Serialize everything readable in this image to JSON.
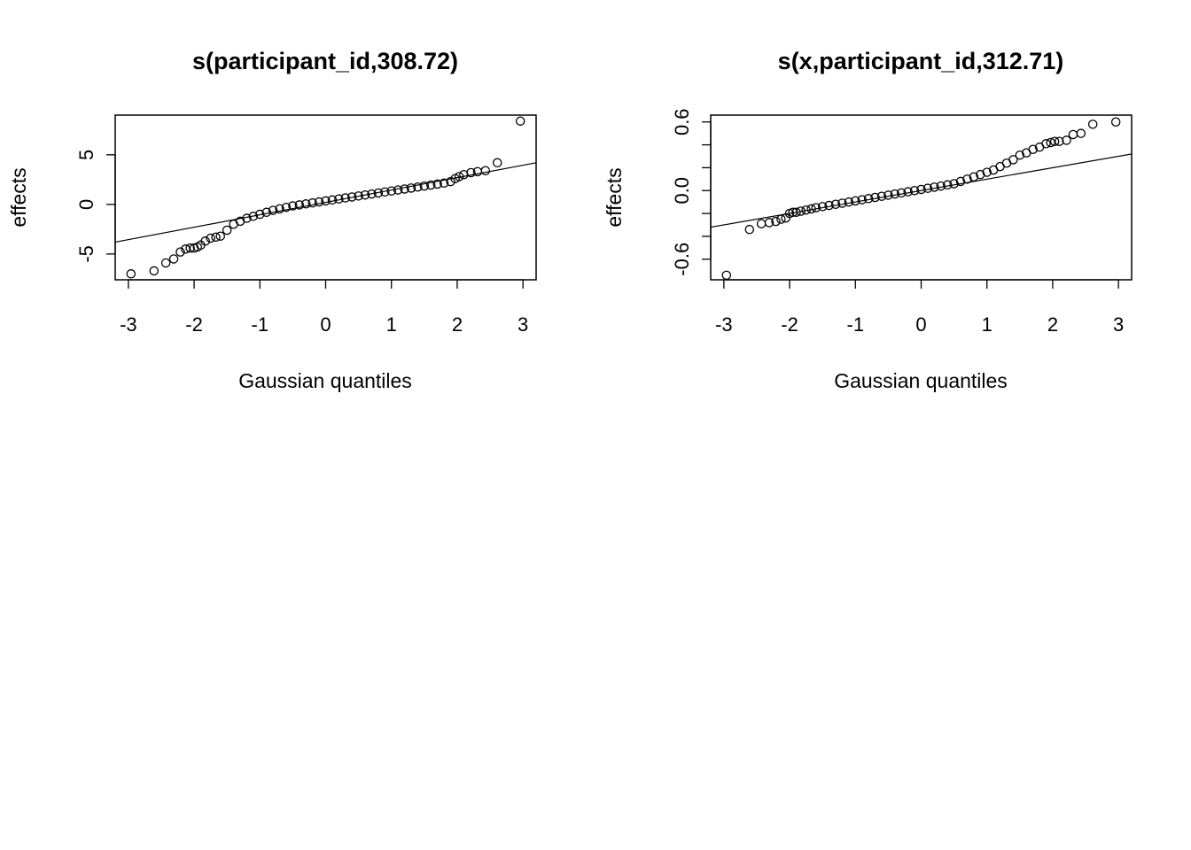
{
  "chart_data": [
    {
      "type": "scatter",
      "title": "s(participant_id,308.72)",
      "xlabel": "Gaussian quantiles",
      "ylabel": "effects",
      "xlim": [
        -3.2,
        3.2
      ],
      "ylim": [
        -7.6,
        9.0
      ],
      "xticks": [
        -3,
        -2,
        -1,
        0,
        1,
        2,
        3
      ],
      "xtick_labels": [
        "-3",
        "-2",
        "-1",
        "0",
        "1",
        "2",
        "3"
      ],
      "yticks": [
        -5,
        0,
        5
      ],
      "ytick_labels": [
        "-5",
        "0",
        "5"
      ],
      "grid": false,
      "reference_line": {
        "intercept": 0.2,
        "slope": 1.25
      },
      "x": [
        -2.96,
        -2.61,
        -2.43,
        -2.31,
        -2.21,
        -2.13,
        -2.06,
        -2.0,
        -1.95,
        -1.9,
        -1.83,
        -1.75,
        -1.67,
        -1.6,
        -1.5,
        -1.4,
        -1.3,
        -1.2,
        -1.1,
        -1.0,
        -0.9,
        -0.8,
        -0.7,
        -0.6,
        -0.5,
        -0.4,
        -0.3,
        -0.2,
        -0.1,
        0.0,
        0.1,
        0.2,
        0.3,
        0.4,
        0.5,
        0.6,
        0.7,
        0.8,
        0.9,
        1.0,
        1.1,
        1.2,
        1.3,
        1.4,
        1.5,
        1.6,
        1.7,
        1.8,
        1.9,
        1.97,
        2.03,
        2.1,
        2.21,
        2.31,
        2.43,
        2.61,
        2.96
      ],
      "y": [
        -7.0,
        -6.7,
        -5.9,
        -5.5,
        -4.8,
        -4.5,
        -4.4,
        -4.4,
        -4.3,
        -4.1,
        -3.7,
        -3.4,
        -3.3,
        -3.2,
        -2.6,
        -2.0,
        -1.7,
        -1.4,
        -1.2,
        -1.0,
        -0.8,
        -0.6,
        -0.45,
        -0.3,
        -0.15,
        -0.05,
        0.05,
        0.15,
        0.25,
        0.35,
        0.45,
        0.55,
        0.65,
        0.75,
        0.85,
        0.95,
        1.05,
        1.15,
        1.25,
        1.35,
        1.45,
        1.55,
        1.65,
        1.75,
        1.85,
        1.95,
        2.05,
        2.15,
        2.3,
        2.6,
        2.8,
        3.0,
        3.2,
        3.3,
        3.4,
        4.2,
        8.4
      ]
    },
    {
      "type": "scatter",
      "title": "s(x,participant_id,312.71)",
      "xlabel": "Gaussian quantiles",
      "ylabel": "effects",
      "xlim": [
        -3.2,
        3.2
      ],
      "ylim": [
        -0.78,
        0.66
      ],
      "xticks": [
        -3,
        -2,
        -1,
        0,
        1,
        2,
        3
      ],
      "xtick_labels": [
        "-3",
        "-2",
        "-1",
        "0",
        "1",
        "2",
        "3"
      ],
      "yticks": [
        -0.6,
        0.0,
        0.6
      ],
      "ytick_labels": [
        "-0.6",
        "0.0",
        "0.6"
      ],
      "yticks_minor": [
        -0.6,
        -0.4,
        -0.2,
        0.0,
        0.2,
        0.4,
        0.6
      ],
      "grid": false,
      "reference_line": {
        "intercept": 0.0,
        "slope": 0.1
      },
      "x": [
        -2.96,
        -2.61,
        -2.43,
        -2.31,
        -2.21,
        -2.13,
        -2.06,
        -2.0,
        -1.95,
        -1.9,
        -1.83,
        -1.75,
        -1.67,
        -1.6,
        -1.5,
        -1.4,
        -1.3,
        -1.2,
        -1.1,
        -1.0,
        -0.9,
        -0.8,
        -0.7,
        -0.6,
        -0.5,
        -0.4,
        -0.3,
        -0.2,
        -0.1,
        0.0,
        0.1,
        0.2,
        0.3,
        0.4,
        0.5,
        0.6,
        0.7,
        0.8,
        0.9,
        1.0,
        1.1,
        1.2,
        1.3,
        1.4,
        1.5,
        1.6,
        1.7,
        1.8,
        1.9,
        1.97,
        2.03,
        2.1,
        2.21,
        2.31,
        2.43,
        2.61,
        2.96
      ],
      "y": [
        -0.74,
        -0.34,
        -0.29,
        -0.28,
        -0.27,
        -0.25,
        -0.24,
        -0.2,
        -0.19,
        -0.19,
        -0.18,
        -0.17,
        -0.16,
        -0.15,
        -0.14,
        -0.13,
        -0.12,
        -0.11,
        -0.1,
        -0.09,
        -0.08,
        -0.07,
        -0.06,
        -0.05,
        -0.04,
        -0.03,
        -0.02,
        -0.01,
        0.0,
        0.01,
        0.02,
        0.03,
        0.04,
        0.05,
        0.06,
        0.08,
        0.1,
        0.12,
        0.14,
        0.16,
        0.18,
        0.21,
        0.24,
        0.27,
        0.31,
        0.33,
        0.36,
        0.38,
        0.41,
        0.42,
        0.43,
        0.43,
        0.44,
        0.49,
        0.5,
        0.58,
        0.6
      ]
    }
  ]
}
